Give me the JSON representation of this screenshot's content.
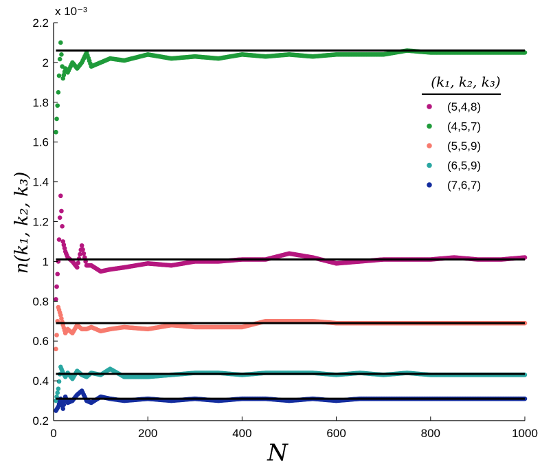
{
  "chart_data": {
    "type": "scatter",
    "title": "",
    "xlabel": "N",
    "ylabel": "n(k₁, k₂, k₃)",
    "y_multiplier": "x 10⁻³",
    "xlim": [
      0,
      1000
    ],
    "ylim": [
      0.2,
      2.2
    ],
    "x_ticks": [
      "0",
      "200",
      "400",
      "600",
      "800",
      "1000"
    ],
    "y_ticks": [
      "0.2",
      "0.4",
      "0.6",
      "0.8",
      "1",
      "1.2",
      "1.4",
      "1.6",
      "1.8",
      "2",
      "2.2"
    ],
    "grid": false,
    "legend": {
      "title": "(k₁, k₂, k₃)",
      "placement": "top-right"
    },
    "series": [
      {
        "name": "(5,4,8)",
        "color": "#b5177f",
        "reference": 1.01,
        "x": [
          5,
          10,
          15,
          20,
          25,
          30,
          40,
          50,
          60,
          70,
          80,
          100,
          120,
          150,
          200,
          250,
          300,
          350,
          400,
          450,
          500,
          550,
          600,
          650,
          700,
          750,
          800,
          850,
          900,
          950,
          1000
        ],
        "y": [
          0.81,
          1.0,
          1.33,
          1.1,
          1.05,
          1.02,
          1.0,
          0.97,
          1.08,
          0.98,
          0.98,
          0.95,
          0.96,
          0.97,
          0.99,
          0.98,
          1.0,
          1.0,
          1.01,
          1.01,
          1.04,
          1.02,
          0.99,
          1.0,
          1.01,
          1.01,
          1.01,
          1.02,
          1.01,
          1.01,
          1.02
        ]
      },
      {
        "name": "(4,5,7)",
        "color": "#1f9b3a",
        "reference": 2.06,
        "x": [
          5,
          10,
          15,
          20,
          25,
          30,
          40,
          50,
          60,
          70,
          80,
          100,
          120,
          150,
          200,
          250,
          300,
          350,
          400,
          450,
          500,
          550,
          600,
          650,
          700,
          750,
          800,
          850,
          900,
          950,
          1000
        ],
        "y": [
          1.65,
          1.85,
          2.1,
          1.92,
          1.97,
          1.95,
          2.0,
          1.97,
          2.0,
          2.05,
          1.98,
          2.0,
          2.02,
          2.01,
          2.04,
          2.02,
          2.03,
          2.02,
          2.04,
          2.03,
          2.04,
          2.03,
          2.04,
          2.04,
          2.04,
          2.06,
          2.05,
          2.05,
          2.05,
          2.05,
          2.05
        ]
      },
      {
        "name": "(5,5,9)",
        "color": "#f77a6e",
        "reference": 0.69,
        "x": [
          5,
          10,
          15,
          20,
          25,
          30,
          40,
          50,
          60,
          70,
          80,
          100,
          120,
          150,
          200,
          250,
          300,
          350,
          400,
          450,
          500,
          550,
          600,
          650,
          700,
          750,
          800,
          850,
          900,
          950,
          1000
        ],
        "y": [
          0.56,
          0.77,
          0.73,
          0.68,
          0.64,
          0.66,
          0.64,
          0.68,
          0.66,
          0.66,
          0.67,
          0.65,
          0.66,
          0.67,
          0.66,
          0.68,
          0.67,
          0.67,
          0.67,
          0.7,
          0.7,
          0.7,
          0.69,
          0.69,
          0.69,
          0.69,
          0.69,
          0.69,
          0.69,
          0.69,
          0.69
        ]
      },
      {
        "name": "(6,5,9)",
        "color": "#2aa7a2",
        "reference": 0.435,
        "x": [
          5,
          10,
          15,
          20,
          25,
          30,
          40,
          50,
          60,
          70,
          80,
          100,
          120,
          150,
          200,
          250,
          300,
          350,
          400,
          450,
          500,
          550,
          600,
          650,
          700,
          750,
          800,
          850,
          900,
          950,
          1000
        ],
        "y": [
          0.3,
          0.36,
          0.47,
          0.44,
          0.42,
          0.44,
          0.41,
          0.45,
          0.43,
          0.42,
          0.44,
          0.43,
          0.46,
          0.42,
          0.42,
          0.43,
          0.44,
          0.44,
          0.43,
          0.44,
          0.44,
          0.44,
          0.43,
          0.44,
          0.43,
          0.44,
          0.43,
          0.43,
          0.43,
          0.43,
          0.43
        ]
      },
      {
        "name": "(7,6,7)",
        "color": "#142d9e",
        "reference": 0.31,
        "x": [
          5,
          10,
          15,
          20,
          25,
          30,
          40,
          50,
          60,
          70,
          80,
          100,
          120,
          150,
          200,
          250,
          300,
          350,
          400,
          450,
          500,
          550,
          600,
          650,
          700,
          750,
          800,
          850,
          900,
          950,
          1000
        ],
        "y": [
          0.25,
          0.27,
          0.31,
          0.26,
          0.32,
          0.29,
          0.3,
          0.33,
          0.35,
          0.3,
          0.29,
          0.32,
          0.31,
          0.3,
          0.31,
          0.3,
          0.31,
          0.3,
          0.31,
          0.31,
          0.3,
          0.31,
          0.3,
          0.31,
          0.31,
          0.31,
          0.31,
          0.31,
          0.31,
          0.31,
          0.31
        ]
      }
    ]
  }
}
